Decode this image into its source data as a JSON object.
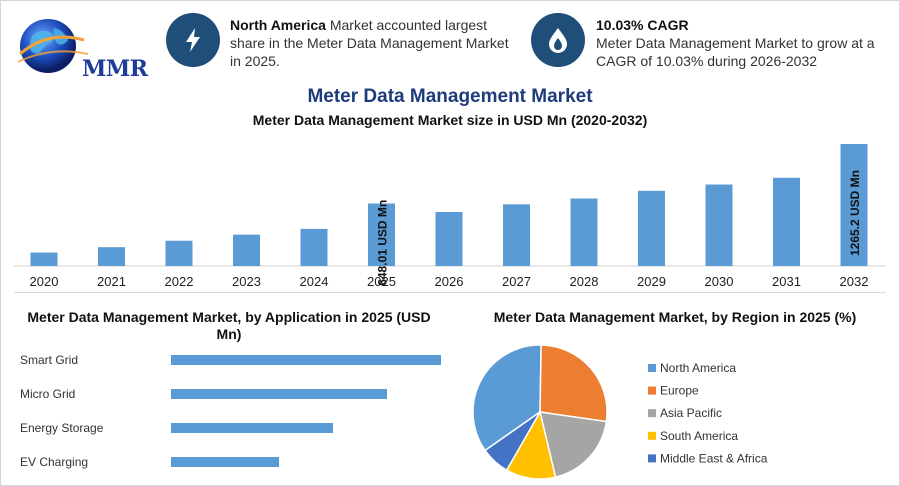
{
  "header": {
    "logo_text": "MMR",
    "block1": {
      "bold": "North America",
      "text": " Market accounted largest share in the Meter Data Management Market in 2025.",
      "icon": "lightning-icon"
    },
    "block2": {
      "bold": "10.03% CAGR",
      "text": "Meter Data Management Market to grow at a CAGR of 10.03% during 2026-2032",
      "icon": "flame-drop-icon"
    }
  },
  "titles": {
    "main": "Meter Data Management Market",
    "sub": "Meter Data Management Market size in USD Mn (2020-2032)",
    "application": "Meter Data Management Market, by Application in 2025 (USD Mn)",
    "region": "Meter Data Management Market, by Region in 2025 (%)"
  },
  "colors": {
    "bar": "#5b9bd5",
    "north_america": "#5b9bd5",
    "europe": "#ed7d31",
    "asia_pacific": "#a5a5a5",
    "south_america": "#ffc000",
    "mea": "#4472c4"
  },
  "chart_data": [
    {
      "type": "bar",
      "title": "Meter Data Management Market size in USD Mn (2020-2032)",
      "categories": [
        "2020",
        "2021",
        "2022",
        "2023",
        "2024",
        "2025",
        "2026",
        "2027",
        "2028",
        "2029",
        "2030",
        "2031",
        "2032"
      ],
      "values": [
        140,
        195,
        262,
        325,
        385,
        648.01,
        560,
        640,
        700,
        780,
        845,
        915,
        1265.2
      ],
      "ylim": [
        0,
        1265.2
      ],
      "labels": {
        "2025": "648.01 USD Mn",
        "2032": "1265.2 USD Mn"
      },
      "xlabel": "",
      "ylabel": ""
    },
    {
      "type": "bar",
      "orientation": "horizontal",
      "title": "Meter Data Management Market, by Application in 2025 (USD Mn)",
      "categories": [
        "Smart Grid",
        "Micro Grid",
        "Energy Storage",
        "EV Charging"
      ],
      "values": [
        270,
        216,
        162,
        108
      ]
    },
    {
      "type": "pie",
      "title": "Meter Data Management Market, by Region in 2025 (%)",
      "categories": [
        "North America",
        "Europe",
        "Asia Pacific",
        "South America",
        "Middle East & Africa"
      ],
      "values": [
        35,
        27,
        19,
        12,
        7
      ]
    }
  ]
}
